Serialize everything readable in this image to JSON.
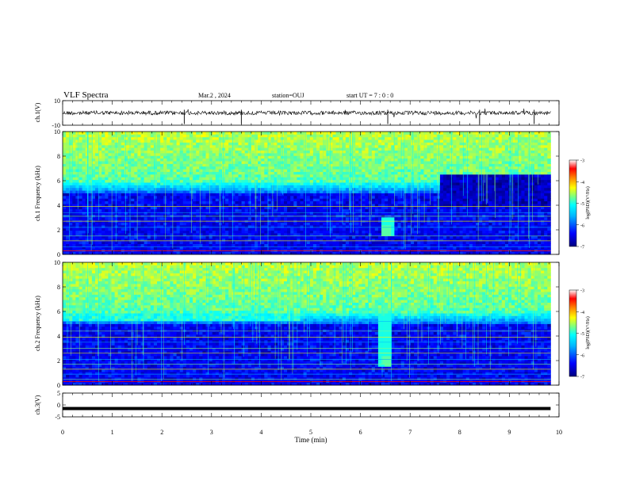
{
  "header": {
    "title": "VLF Spectra",
    "date": "Mar.2 , 2024",
    "station": "station=OUJ",
    "start": "start UT = 7 : 0 : 0"
  },
  "colors": {
    "trace": "#000000",
    "colormap": [
      "#00007f",
      "#0000ff",
      "#00b4ff",
      "#00ffff",
      "#7fff7f",
      "#ffff00",
      "#ff7f00",
      "#ff0000",
      "#ffffff"
    ]
  },
  "chart_data": [
    {
      "type": "line",
      "name": "ch1-waveform",
      "ylabel": "ch.1(V)",
      "ylim": [
        -10,
        10
      ],
      "yticks": [
        "10",
        "-10"
      ],
      "baseline": 0,
      "xlim": [
        0,
        10
      ]
    },
    {
      "type": "heatmap",
      "name": "ch1-spectrogram",
      "ylabel": "ch.1 Frequency (kHz)",
      "ylim": [
        0,
        10
      ],
      "yticks": [
        "0",
        "2",
        "4",
        "6",
        "8",
        "10"
      ],
      "xlim": [
        0,
        10
      ],
      "colorbar": {
        "label": "log(PSD)(V²/Hz)",
        "range": [
          -7,
          -3
        ],
        "ticks": [
          "-3",
          "-4",
          "-5",
          "-6",
          "-7"
        ]
      },
      "features": {
        "chorus_time_min": 6.55,
        "chorus_freq_khz": 2.0,
        "quiet_after_min": 7.6
      }
    },
    {
      "type": "heatmap",
      "name": "ch2-spectrogram",
      "ylabel": "ch.2 Frequency (kHz)",
      "ylim": [
        0,
        10
      ],
      "yticks": [
        "0",
        "2",
        "4",
        "6",
        "8",
        "10"
      ],
      "xlim": [
        0,
        10
      ],
      "colorbar": {
        "label": "log(PSD)(V²/Hz)",
        "range": [
          -7,
          -3
        ],
        "ticks": [
          "-3",
          "-4",
          "-5",
          "-6",
          "-7"
        ]
      },
      "features": {
        "chorus_time_min": 6.5,
        "chorus_freq_khz": 2.0
      }
    },
    {
      "type": "line",
      "name": "ch3-signal",
      "ylabel": "ch.3(V)",
      "ylim": [
        -5,
        5
      ],
      "yticks": [
        "5",
        "0",
        "-5"
      ],
      "constant_value": -1.5,
      "xlim": [
        0,
        10
      ]
    }
  ],
  "xaxis": {
    "label": "Time (min)",
    "ticks": [
      "0",
      "1",
      "2",
      "3",
      "4",
      "5",
      "6",
      "7",
      "8",
      "9",
      "10"
    ],
    "data_end": 9.83
  }
}
